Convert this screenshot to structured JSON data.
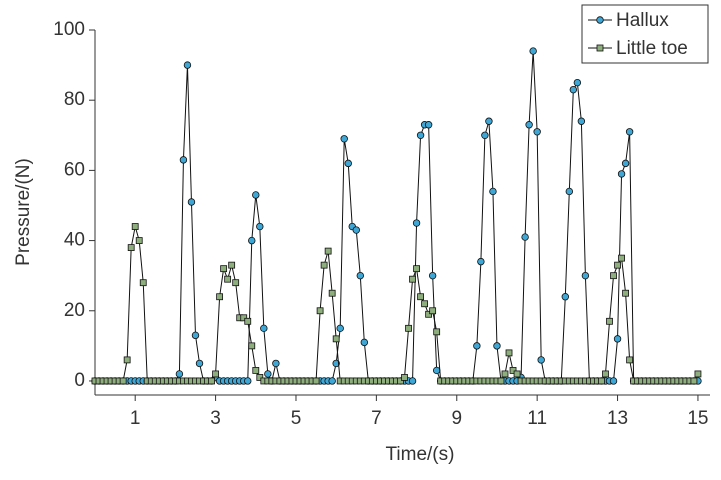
{
  "chart_data": {
    "type": "line",
    "x_label": "Time/(s)",
    "y_label": "Pressure/(N)",
    "x": [
      0,
      0.1,
      0.2,
      0.3,
      0.4,
      0.5,
      0.6,
      0.7,
      0.8,
      0.9,
      1,
      1.1,
      1.2,
      1.3,
      1.4,
      1.5,
      1.6,
      1.7,
      1.8,
      1.9,
      2,
      2.1,
      2.2,
      2.3,
      2.4,
      2.5,
      2.6,
      2.7,
      2.8,
      2.9,
      3,
      3.1,
      3.2,
      3.3,
      3.4,
      3.5,
      3.6,
      3.7,
      3.8,
      3.9,
      4,
      4.1,
      4.2,
      4.3,
      4.4,
      4.5,
      4.6,
      4.7,
      4.8,
      4.9,
      5,
      5.1,
      5.2,
      5.3,
      5.4,
      5.5,
      5.6,
      5.7,
      5.8,
      5.9,
      6,
      6.1,
      6.2,
      6.3,
      6.4,
      6.5,
      6.6,
      6.7,
      6.8,
      6.9,
      7,
      7.1,
      7.2,
      7.3,
      7.4,
      7.5,
      7.6,
      7.7,
      7.8,
      7.9,
      8,
      8.1,
      8.2,
      8.3,
      8.4,
      8.5,
      8.6,
      8.7,
      8.8,
      8.9,
      9,
      9.1,
      9.2,
      9.3,
      9.4,
      9.5,
      9.6,
      9.7,
      9.8,
      9.9,
      10,
      10.1,
      10.2,
      10.3,
      10.4,
      10.5,
      10.6,
      10.7,
      10.8,
      10.9,
      11,
      11.1,
      11.2,
      11.3,
      11.4,
      11.5,
      11.6,
      11.7,
      11.8,
      11.9,
      12,
      12.1,
      12.2,
      12.3,
      12.4,
      12.5,
      12.6,
      12.7,
      12.8,
      12.9,
      13,
      13.1,
      13.2,
      13.3,
      13.4,
      13.5,
      13.6,
      13.7,
      13.8,
      13.9,
      14,
      14.1,
      14.2,
      14.3,
      14.4,
      14.5,
      14.6,
      14.7,
      14.8,
      14.9,
      15
    ],
    "series": [
      {
        "name": "Hallux",
        "color": "#3fa7d6",
        "marker": "circle",
        "values": [
          0,
          0,
          0,
          0,
          0,
          0,
          0,
          0,
          0,
          0,
          0,
          0,
          0,
          0,
          0,
          0,
          0,
          0,
          0,
          0,
          0,
          2,
          63,
          90,
          51,
          13,
          5,
          0,
          0,
          0,
          1,
          0,
          0,
          0,
          0,
          0,
          0,
          0,
          0,
          40,
          53,
          44,
          15,
          2,
          0,
          5,
          0,
          0,
          0,
          0,
          0,
          0,
          0,
          0,
          0,
          0,
          0,
          0,
          0,
          0,
          5,
          15,
          69,
          62,
          44,
          43,
          30,
          11,
          0,
          0,
          0,
          0,
          0,
          0,
          0,
          0,
          0,
          0,
          0,
          0,
          45,
          70,
          73,
          73,
          30,
          3,
          0,
          0,
          0,
          0,
          0,
          0,
          0,
          0,
          0,
          10,
          34,
          70,
          74,
          54,
          10,
          0,
          0,
          0,
          0,
          0,
          1,
          41,
          73,
          94,
          71,
          6,
          0,
          0,
          0,
          0,
          0,
          24,
          54,
          83,
          85,
          74,
          30,
          0,
          0,
          0,
          0,
          0,
          0,
          0,
          12,
          59,
          62,
          71,
          0,
          0,
          0,
          0,
          0,
          0,
          0,
          0,
          0,
          0,
          0,
          0,
          0,
          0,
          0,
          0,
          0
        ]
      },
      {
        "name": "Little toe",
        "color": "#8fae7e",
        "marker": "square",
        "values": [
          0,
          0,
          0,
          0,
          0,
          0,
          0,
          0,
          6,
          38,
          44,
          40,
          28,
          0,
          0,
          0,
          0,
          0,
          0,
          0,
          0,
          0,
          0,
          0,
          0,
          0,
          0,
          0,
          0,
          0,
          2,
          24,
          32,
          29,
          33,
          28,
          18,
          18,
          17,
          10,
          3,
          1,
          0,
          0,
          0,
          0,
          0,
          0,
          0,
          0,
          0,
          0,
          0,
          0,
          0,
          0,
          20,
          33,
          37,
          25,
          12,
          0,
          0,
          0,
          0,
          0,
          0,
          0,
          0,
          0,
          0,
          0,
          0,
          0,
          0,
          0,
          0,
          1,
          15,
          29,
          32,
          24,
          22,
          19,
          20,
          14,
          0,
          0,
          0,
          0,
          0,
          0,
          0,
          0,
          0,
          0,
          0,
          0,
          0,
          0,
          0,
          0,
          2,
          8,
          3,
          2,
          0,
          0,
          0,
          0,
          0,
          0,
          0,
          0,
          0,
          0,
          0,
          0,
          0,
          0,
          0,
          0,
          0,
          0,
          0,
          0,
          0,
          2,
          17,
          30,
          33,
          35,
          25,
          6,
          0,
          0,
          0,
          0,
          0,
          0,
          0,
          0,
          0,
          0,
          0,
          0,
          0,
          0,
          0,
          0,
          2
        ]
      }
    ],
    "xlim": [
      0,
      15.3
    ],
    "xticks": [
      1,
      3,
      5,
      7,
      9,
      11,
      13,
      15
    ],
    "ylim": [
      -4,
      100
    ],
    "yticks": [
      0,
      20,
      40,
      60,
      80,
      100
    ],
    "legend": "top-right"
  }
}
